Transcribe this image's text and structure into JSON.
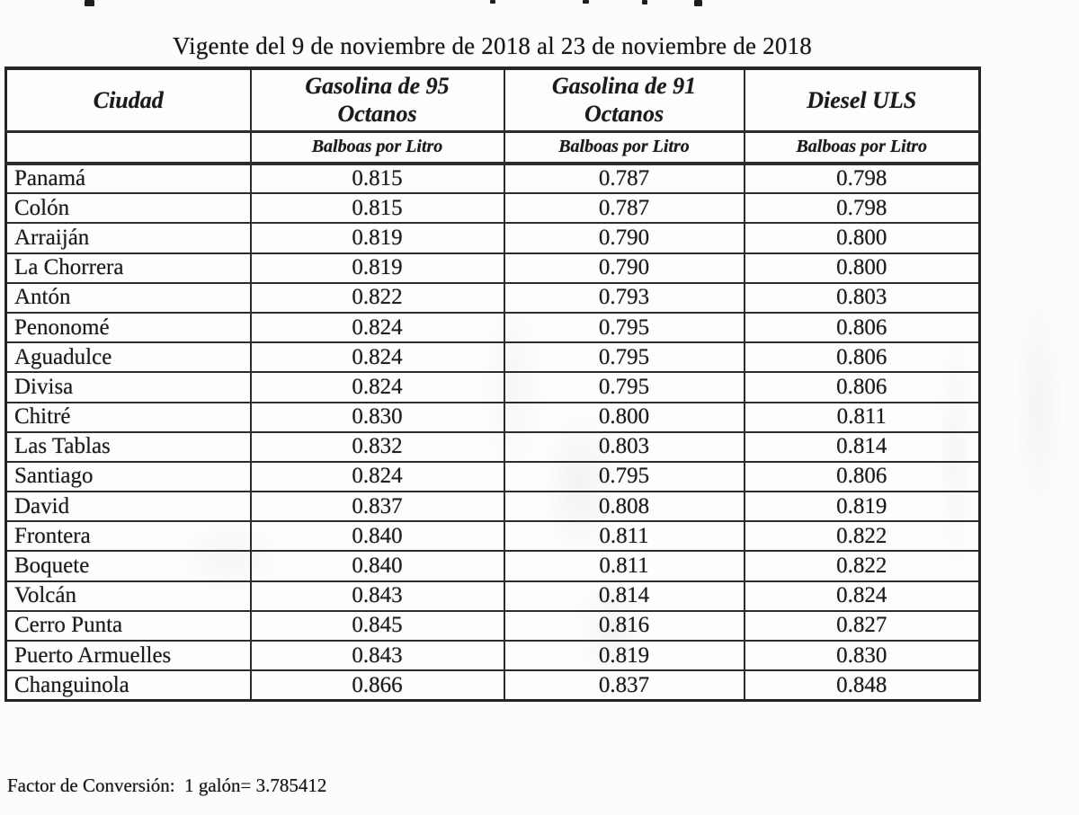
{
  "page": {
    "title": "Vigente del 9 de noviembre de 2018 al 23 de noviembre de 2018",
    "footer": "Factor de Conversión:  1 galón= 3.785412"
  },
  "table": {
    "columns": [
      "Ciudad",
      "Gasolina de 95\nOctanos",
      "Gasolina de 91\nOctanos",
      "Diesel ULS"
    ],
    "unit_row": [
      "",
      "Balboas por Litro",
      "Balboas por Litro",
      "Balboas por Litro"
    ],
    "rows": [
      [
        "Panamá",
        "0.815",
        "0.787",
        "0.798"
      ],
      [
        "Colón",
        "0.815",
        "0.787",
        "0.798"
      ],
      [
        "Arraiján",
        "0.819",
        "0.790",
        "0.800"
      ],
      [
        "La Chorrera",
        "0.819",
        "0.790",
        "0.800"
      ],
      [
        "Antón",
        "0.822",
        "0.793",
        "0.803"
      ],
      [
        "Penonomé",
        "0.824",
        "0.795",
        "0.806"
      ],
      [
        "Aguadulce",
        "0.824",
        "0.795",
        "0.806"
      ],
      [
        "Divisa",
        "0.824",
        "0.795",
        "0.806"
      ],
      [
        "Chitré",
        "0.830",
        "0.800",
        "0.811"
      ],
      [
        "Las Tablas",
        "0.832",
        "0.803",
        "0.814"
      ],
      [
        "Santiago",
        "0.824",
        "0.795",
        "0.806"
      ],
      [
        "David",
        "0.837",
        "0.808",
        "0.819"
      ],
      [
        "Frontera",
        "0.840",
        "0.811",
        "0.822"
      ],
      [
        "Boquete",
        "0.840",
        "0.811",
        "0.822"
      ],
      [
        "Volcán",
        "0.843",
        "0.814",
        "0.824"
      ],
      [
        "Cerro Punta",
        "0.845",
        "0.816",
        "0.827"
      ],
      [
        "Puerto Armuelles",
        "0.843",
        "0.819",
        "0.830"
      ],
      [
        "Changuinola",
        "0.866",
        "0.837",
        "0.848"
      ]
    ]
  }
}
